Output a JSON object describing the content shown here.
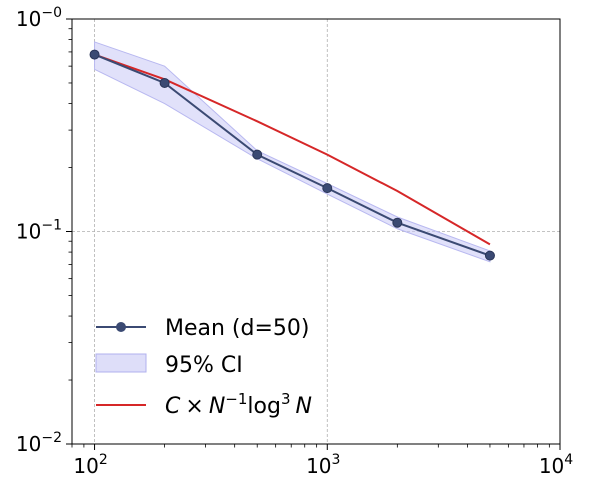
{
  "chart_data": {
    "type": "line",
    "x_scale": "log",
    "y_scale": "log",
    "xlim": [
      80,
      10000
    ],
    "ylim": [
      0.01,
      1.0
    ],
    "grid": true,
    "legend_position": "lower-left",
    "x_ticks": [
      {
        "value": 100,
        "base": "10",
        "exp": "2"
      },
      {
        "value": 1000,
        "base": "10",
        "exp": "3"
      },
      {
        "value": 10000,
        "base": "10",
        "exp": "4"
      }
    ],
    "y_ticks": [
      {
        "value": 0.01,
        "base": "10",
        "exp": "−2"
      },
      {
        "value": 0.1,
        "base": "10",
        "exp": "−1"
      },
      {
        "value": 1.0,
        "base": "10",
        "exp": "−0"
      }
    ],
    "x": [
      100,
      200,
      500,
      1000,
      2000,
      5000
    ],
    "series": [
      {
        "name": "Mean (d=50)",
        "kind": "line-marker",
        "color": "#3b4a73",
        "values": [
          0.68,
          0.5,
          0.23,
          0.16,
          0.11,
          0.077
        ]
      },
      {
        "name": "95% CI",
        "kind": "band",
        "color": "#c8c8f5",
        "lower": [
          0.58,
          0.4,
          0.22,
          0.15,
          0.103,
          0.072
        ],
        "upper": [
          0.78,
          0.6,
          0.24,
          0.168,
          0.117,
          0.081
        ]
      },
      {
        "name": "C × N⁻¹log³ N",
        "kind": "line",
        "color": "#d62728",
        "values": [
          0.68,
          0.52,
          0.33,
          0.23,
          0.155,
          0.087
        ]
      }
    ],
    "legend": {
      "mean_label": "Mean (d=50)",
      "ci_label": "95% CI",
      "fit_label": {
        "pre": "C",
        "times": "×",
        "n": "N",
        "n_exp": "−1",
        "log": "log",
        "log_exp": "3",
        "post": "N"
      }
    }
  }
}
